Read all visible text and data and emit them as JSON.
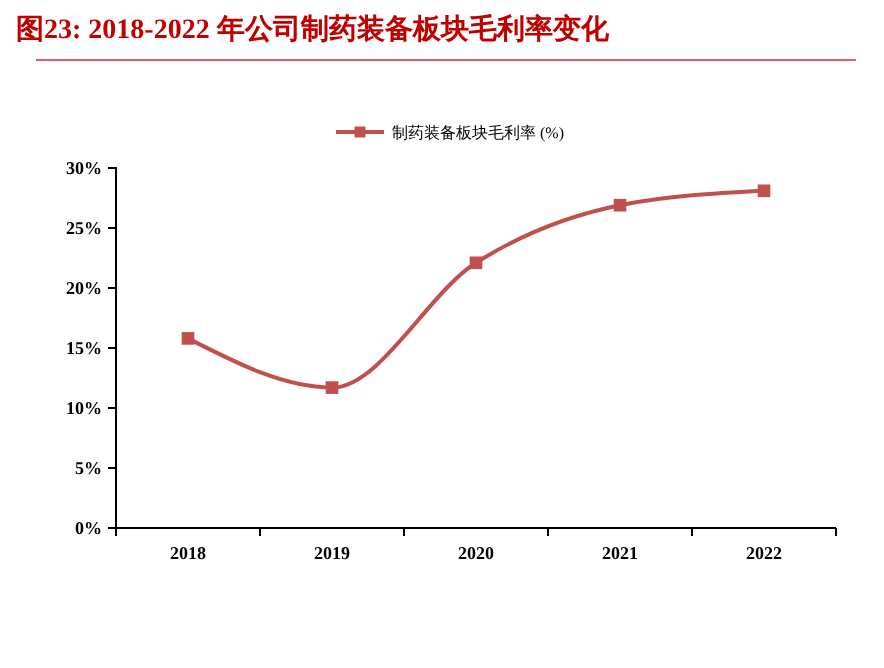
{
  "chart_data": {
    "type": "line",
    "title": "图23:    2018-2022 年公司制药装备板块毛利率变化",
    "categories": [
      "2018",
      "2019",
      "2020",
      "2021",
      "2022"
    ],
    "series": [
      {
        "name": "制药装备板块毛利率 (%)",
        "color": "#c0504d",
        "values": [
          15.8,
          11.7,
          22.1,
          26.9,
          28.1
        ]
      }
    ],
    "ylim": [
      0,
      30
    ],
    "yticks": [
      {
        "value": 0,
        "label": "0%"
      },
      {
        "value": 5,
        "label": "5%"
      },
      {
        "value": 10,
        "label": "10%"
      },
      {
        "value": 15,
        "label": "15%"
      },
      {
        "value": 20,
        "label": "20%"
      },
      {
        "value": 25,
        "label": "25%"
      },
      {
        "value": 30,
        "label": "30%"
      }
    ],
    "grid": false,
    "legend": "top",
    "marker": "square",
    "line_style": "solid"
  }
}
